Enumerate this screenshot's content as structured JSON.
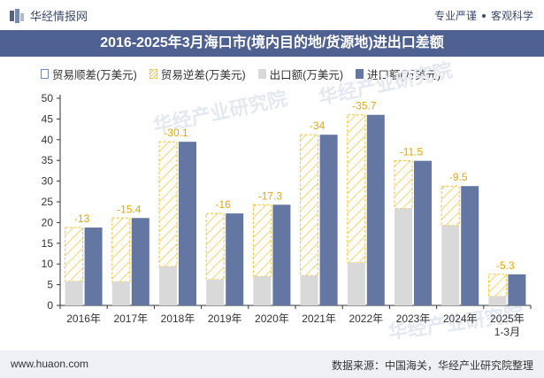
{
  "header": {
    "brand": "华经情报网",
    "tags": [
      "专业严谨",
      "客观科学"
    ]
  },
  "title": "2016-2025年3月海口市(境内目的地/货源地)进出口差额",
  "legend": {
    "surplus": "贸易顺差(万美元)",
    "deficit": "贸易逆差(万美元)",
    "export": "出口额(万美元)",
    "import": "进口额(万美元)"
  },
  "chart_data": {
    "type": "bar",
    "categories": [
      "2016年",
      "2017年",
      "2018年",
      "2019年",
      "2020年",
      "2021年",
      "2022年",
      "2023年",
      "2024年",
      "2025年\n1-3月"
    ],
    "series": [
      {
        "name": "出口额(万美元)",
        "values": [
          5.8,
          5.7,
          9.4,
          6.2,
          7.0,
          7.2,
          10.3,
          23.4,
          19.3,
          2.2
        ]
      },
      {
        "name": "进口额(万美元)",
        "values": [
          18.8,
          21.1,
          39.5,
          22.2,
          24.3,
          41.2,
          46.0,
          34.9,
          28.8,
          7.5
        ]
      }
    ],
    "deficit_labels": [
      "-13",
      "-15.4",
      "-30.1",
      "-16",
      "-17.3",
      "-34",
      "-35.7",
      "-11.5",
      "-9.5",
      "-5.3"
    ],
    "ylim": [
      0,
      50
    ],
    "yticks": [
      0,
      5,
      10,
      15,
      20,
      25,
      30,
      35,
      40,
      45,
      50
    ],
    "colors": {
      "export": "#d9d9d9",
      "import": "#6477a3",
      "deficit": "#f2c230",
      "label": "#e0a800"
    },
    "watermark": "华经产业研究院"
  },
  "footer": {
    "url": "www.huaon.com",
    "source": "数据来源：中国海关，华经产业研究院整理"
  }
}
